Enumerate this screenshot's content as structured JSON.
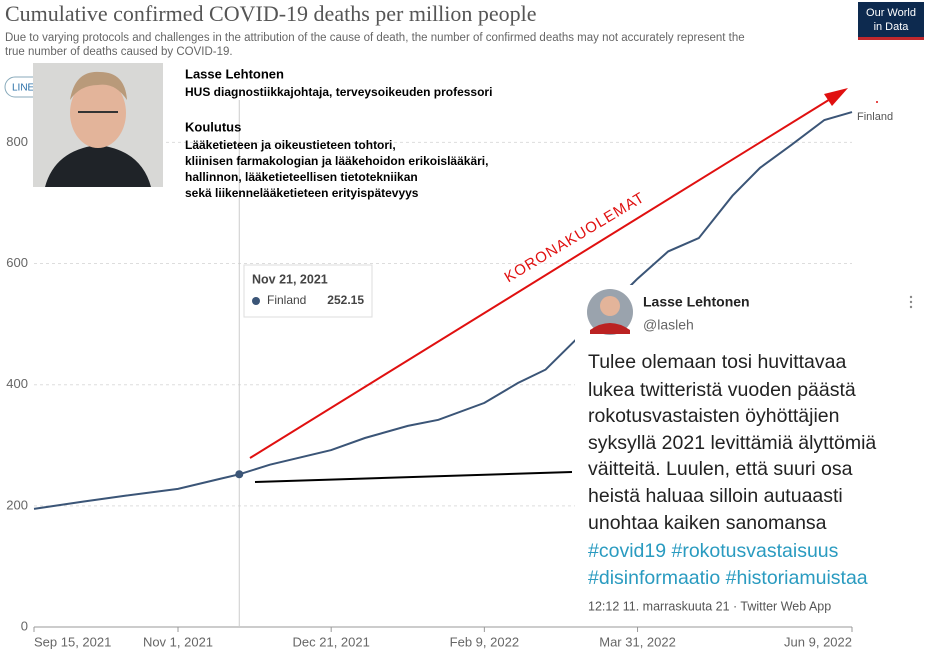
{
  "header": {
    "title": "Cumulative confirmed COVID-19 deaths per million people",
    "subtitle_lines": [
      "Due to varying protocols and challenges in the attribution of the cause of death, the number of confirmed deaths may not accurately represent the",
      "true number of deaths caused by COVID-19."
    ],
    "logo": [
      "Our World",
      "in Data"
    ],
    "tab": "LINE"
  },
  "chart_data": {
    "type": "line",
    "x": [
      "2021-09-15",
      "2021-10-01",
      "2021-10-15",
      "2021-11-01",
      "2021-11-15",
      "2021-11-21",
      "2021-12-01",
      "2021-12-21",
      "2022-01-01",
      "2022-01-15",
      "2022-01-25",
      "2022-02-09",
      "2022-02-20",
      "2022-03-01",
      "2022-03-10",
      "2022-03-31",
      "2022-04-10",
      "2022-04-20",
      "2022-05-01",
      "2022-05-10",
      "2022-05-20",
      "2022-05-31",
      "2022-06-09"
    ],
    "series": [
      {
        "name": "Finland",
        "color": "#3b5577",
        "values": [
          195,
          207,
          217,
          228,
          245,
          252.15,
          268,
          292,
          312,
          332,
          342,
          370,
          403,
          425,
          470,
          575,
          620,
          642,
          712,
          758,
          795,
          837,
          850
        ]
      }
    ],
    "xlim": [
      "2021-09-15",
      "2022-06-09"
    ],
    "xticks": [
      {
        "value": "2021-09-15",
        "label": "Sep 15, 2021"
      },
      {
        "value": "2021-11-01",
        "label": "Nov 1, 2021"
      },
      {
        "value": "2021-12-21",
        "label": "Dec 21, 2021"
      },
      {
        "value": "2022-02-09",
        "label": "Feb 9, 2022"
      },
      {
        "value": "2022-03-31",
        "label": "Mar 31, 2022"
      },
      {
        "value": "2022-06-09",
        "label": "Jun 9, 2022"
      }
    ],
    "ylim": [
      0,
      870
    ],
    "yticks": [
      0,
      200,
      400,
      600,
      800
    ],
    "grid": true
  },
  "tooltip": {
    "date": "Nov 21, 2021",
    "index": 5
  },
  "bio": {
    "name": "Lasse Lehtonen",
    "role": "HUS diagnostiikkajohtaja, terveysoikeuden professori",
    "heading": "Koulutus",
    "lines": [
      "Lääketieteen ja oikeustieteen tohtori,",
      "kliinisen farmakologian ja lääkehoidon erikoislääkäri,",
      "hallinnon, lääketieteellisen tietotekniikan",
      "sekä liikennelääketieteen erityispätevyys"
    ]
  },
  "annotation": "KORONAKUOLEMAT",
  "tweet": {
    "name": "Lasse Lehtonen",
    "handle": "@lasleh",
    "lines": [
      "Tulee olemaan tosi huvittavaa",
      "lukea twitteristä vuoden päästä",
      "rokotusvastaisten öyhöttäjien",
      "syksyllä 2021 levittämiä älyttömiä",
      "väitteitä. Luulen, että suuri osa",
      "heistä haluaa silloin autuaasti",
      "unohtaa kaiken sanomansa"
    ],
    "hashtags": [
      "#covid19 #rokotusvastaisuus",
      "#disinformaatio #historiamuistaa"
    ],
    "footer": "12:12 11. marraskuuta 21 · Twitter Web App"
  }
}
